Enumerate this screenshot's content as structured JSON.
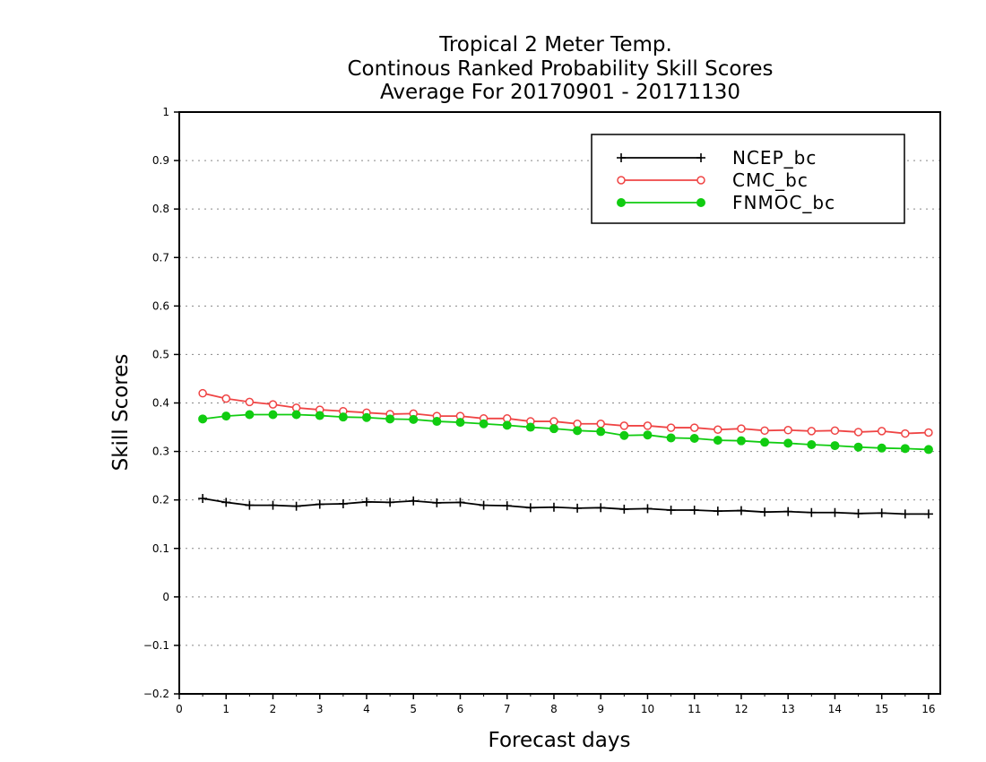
{
  "chart_data": {
    "type": "line",
    "title_lines": [
      "Tropical 2 Meter Temp.",
      "Continous Ranked Probability Skill Scores",
      "Average For 20170901 - 20171130"
    ],
    "xlabel": "Forecast days",
    "ylabel": "Skill Scores",
    "xlim": [
      0,
      16.25
    ],
    "ylim": [
      -0.2,
      1
    ],
    "xticks": [
      0,
      1,
      2,
      3,
      4,
      5,
      6,
      7,
      8,
      9,
      10,
      11,
      12,
      13,
      14,
      15,
      16
    ],
    "yticks": [
      -0.2,
      -0.1,
      0,
      0.1,
      0.2,
      0.3,
      0.4,
      0.5,
      0.6,
      0.7,
      0.8,
      0.9,
      1
    ],
    "ytick_labels": [
      "−0.2",
      "−0.1",
      "0",
      "0.1",
      "0.2",
      "0.3",
      "0.4",
      "0.5",
      "0.6",
      "0.7",
      "0.8",
      "0.9",
      "1"
    ],
    "grid": "horizontal-dotted",
    "legend_position": "top-right",
    "x": [
      0.5,
      1,
      1.5,
      2,
      2.5,
      3,
      3.5,
      4,
      4.5,
      5,
      5.5,
      6,
      6.5,
      7,
      7.5,
      8,
      8.5,
      9,
      9.5,
      10,
      10.5,
      11,
      11.5,
      12,
      12.5,
      13,
      13.5,
      14,
      14.5,
      15,
      15.5,
      16
    ],
    "series": [
      {
        "name": "NCEP_bc",
        "color": "#000000",
        "marker": "plus",
        "values": [
          0.203,
          0.195,
          0.189,
          0.189,
          0.187,
          0.191,
          0.192,
          0.196,
          0.195,
          0.198,
          0.194,
          0.195,
          0.189,
          0.188,
          0.184,
          0.185,
          0.183,
          0.184,
          0.181,
          0.182,
          0.179,
          0.179,
          0.177,
          0.178,
          0.175,
          0.176,
          0.174,
          0.174,
          0.172,
          0.173,
          0.171,
          0.171
        ]
      },
      {
        "name": "CMC_bc",
        "color": "#ef4444",
        "marker": "open-circle",
        "values": [
          0.42,
          0.409,
          0.402,
          0.397,
          0.39,
          0.386,
          0.383,
          0.38,
          0.377,
          0.378,
          0.373,
          0.373,
          0.368,
          0.368,
          0.362,
          0.362,
          0.357,
          0.357,
          0.353,
          0.353,
          0.349,
          0.349,
          0.345,
          0.347,
          0.343,
          0.344,
          0.342,
          0.343,
          0.34,
          0.342,
          0.337,
          0.339
        ]
      },
      {
        "name": "FNMOC_bc",
        "color": "#11cc11",
        "marker": "filled-circle",
        "values": [
          0.367,
          0.373,
          0.376,
          0.376,
          0.376,
          0.374,
          0.371,
          0.37,
          0.367,
          0.366,
          0.362,
          0.36,
          0.357,
          0.354,
          0.35,
          0.347,
          0.343,
          0.341,
          0.333,
          0.334,
          0.328,
          0.327,
          0.323,
          0.322,
          0.319,
          0.317,
          0.314,
          0.312,
          0.309,
          0.307,
          0.306,
          0.304
        ]
      }
    ]
  }
}
